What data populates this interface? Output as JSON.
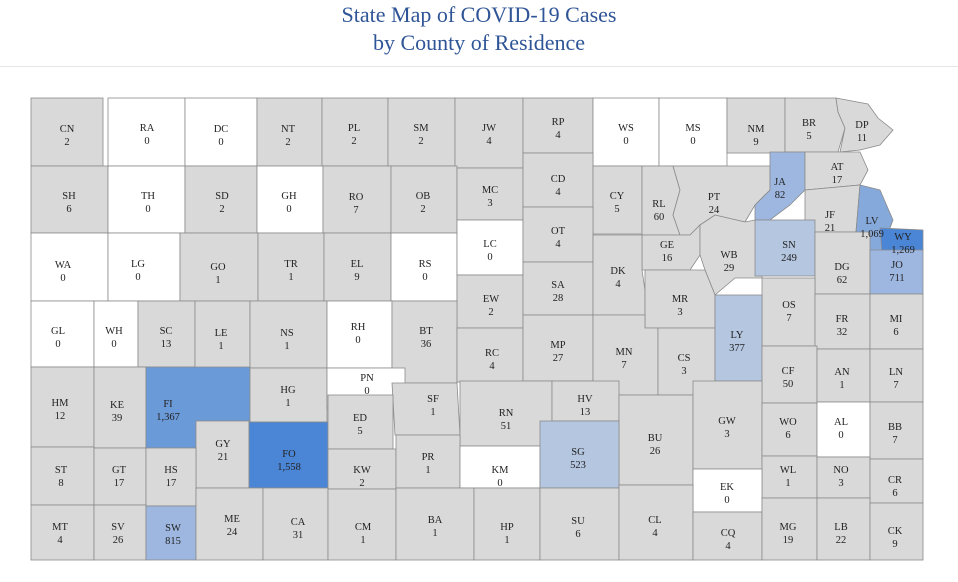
{
  "title": {
    "line1": "State Map of COVID-19 Cases",
    "line2": "by County of Residence"
  },
  "colors": {
    "zero": "#ffffff",
    "low": "#d9d9d9",
    "mid": "#b4c6e0",
    "high": "#86a9dc",
    "higher": "#6b9ad9",
    "highest": "#4b86d6",
    "border": "#8a8a8a"
  },
  "counties": [
    {
      "abbr": "CN",
      "cases": "2"
    },
    {
      "abbr": "RA",
      "cases": "0"
    },
    {
      "abbr": "DC",
      "cases": "0"
    },
    {
      "abbr": "NT",
      "cases": "2"
    },
    {
      "abbr": "PL",
      "cases": "2"
    },
    {
      "abbr": "SM",
      "cases": "2"
    },
    {
      "abbr": "JW",
      "cases": "4"
    },
    {
      "abbr": "RP",
      "cases": "4"
    },
    {
      "abbr": "WS",
      "cases": "0"
    },
    {
      "abbr": "MS",
      "cases": "0"
    },
    {
      "abbr": "NM",
      "cases": "9"
    },
    {
      "abbr": "BR",
      "cases": "5"
    },
    {
      "abbr": "DP",
      "cases": "11"
    },
    {
      "abbr": "SH",
      "cases": "6"
    },
    {
      "abbr": "TH",
      "cases": "0"
    },
    {
      "abbr": "SD",
      "cases": "2"
    },
    {
      "abbr": "GH",
      "cases": "0"
    },
    {
      "abbr": "RO",
      "cases": "7"
    },
    {
      "abbr": "OB",
      "cases": "2"
    },
    {
      "abbr": "MC",
      "cases": "3"
    },
    {
      "abbr": "CD",
      "cases": "4"
    },
    {
      "abbr": "CY",
      "cases": "5"
    },
    {
      "abbr": "RL",
      "cases": "60"
    },
    {
      "abbr": "PT",
      "cases": "24"
    },
    {
      "abbr": "JA",
      "cases": "82"
    },
    {
      "abbr": "AT",
      "cases": "17"
    },
    {
      "abbr": "JF",
      "cases": "21"
    },
    {
      "abbr": "LV",
      "cases": "1,069"
    },
    {
      "abbr": "WY",
      "cases": "1,269"
    },
    {
      "abbr": "WA",
      "cases": "0"
    },
    {
      "abbr": "LG",
      "cases": "0"
    },
    {
      "abbr": "GO",
      "cases": "1"
    },
    {
      "abbr": "TR",
      "cases": "1"
    },
    {
      "abbr": "EL",
      "cases": "9"
    },
    {
      "abbr": "RS",
      "cases": "0"
    },
    {
      "abbr": "LC",
      "cases": "0"
    },
    {
      "abbr": "OT",
      "cases": "4"
    },
    {
      "abbr": "GE",
      "cases": "16"
    },
    {
      "abbr": "WB",
      "cases": "29"
    },
    {
      "abbr": "SN",
      "cases": "249"
    },
    {
      "abbr": "DG",
      "cases": "62"
    },
    {
      "abbr": "JO",
      "cases": "711"
    },
    {
      "abbr": "EW",
      "cases": "2"
    },
    {
      "abbr": "SA",
      "cases": "28"
    },
    {
      "abbr": "DK",
      "cases": "4"
    },
    {
      "abbr": "MR",
      "cases": "3"
    },
    {
      "abbr": "OS",
      "cases": "7"
    },
    {
      "abbr": "FR",
      "cases": "32"
    },
    {
      "abbr": "MI",
      "cases": "6"
    },
    {
      "abbr": "GL",
      "cases": "0"
    },
    {
      "abbr": "WH",
      "cases": "0"
    },
    {
      "abbr": "SC",
      "cases": "13"
    },
    {
      "abbr": "LE",
      "cases": "1"
    },
    {
      "abbr": "NS",
      "cases": "1"
    },
    {
      "abbr": "RH",
      "cases": "0"
    },
    {
      "abbr": "BT",
      "cases": "36"
    },
    {
      "abbr": "RC",
      "cases": "4"
    },
    {
      "abbr": "MP",
      "cases": "27"
    },
    {
      "abbr": "MN",
      "cases": "7"
    },
    {
      "abbr": "CS",
      "cases": "3"
    },
    {
      "abbr": "LY",
      "cases": "377"
    },
    {
      "abbr": "CF",
      "cases": "50"
    },
    {
      "abbr": "AN",
      "cases": "1"
    },
    {
      "abbr": "LN",
      "cases": "7"
    },
    {
      "abbr": "HM",
      "cases": "12"
    },
    {
      "abbr": "KE",
      "cases": "39"
    },
    {
      "abbr": "FI",
      "cases": "1,367"
    },
    {
      "abbr": "HG",
      "cases": "1"
    },
    {
      "abbr": "PN",
      "cases": "0"
    },
    {
      "abbr": "SF",
      "cases": "1"
    },
    {
      "abbr": "RN",
      "cases": "51"
    },
    {
      "abbr": "HV",
      "cases": "13"
    },
    {
      "abbr": "BU",
      "cases": "26"
    },
    {
      "abbr": "GW",
      "cases": "3"
    },
    {
      "abbr": "WO",
      "cases": "6"
    },
    {
      "abbr": "AL",
      "cases": "0"
    },
    {
      "abbr": "BB",
      "cases": "7"
    },
    {
      "abbr": "GY",
      "cases": "21"
    },
    {
      "abbr": "FO",
      "cases": "1,558"
    },
    {
      "abbr": "ED",
      "cases": "5"
    },
    {
      "abbr": "ST",
      "cases": "8"
    },
    {
      "abbr": "GT",
      "cases": "17"
    },
    {
      "abbr": "HS",
      "cases": "17"
    },
    {
      "abbr": "KW",
      "cases": "2"
    },
    {
      "abbr": "PR",
      "cases": "1"
    },
    {
      "abbr": "KM",
      "cases": "0"
    },
    {
      "abbr": "SG",
      "cases": "523"
    },
    {
      "abbr": "WL",
      "cases": "1"
    },
    {
      "abbr": "NO",
      "cases": "3"
    },
    {
      "abbr": "CR",
      "cases": "6"
    },
    {
      "abbr": "EK",
      "cases": "0"
    },
    {
      "abbr": "MT",
      "cases": "4"
    },
    {
      "abbr": "SV",
      "cases": "26"
    },
    {
      "abbr": "SW",
      "cases": "815"
    },
    {
      "abbr": "ME",
      "cases": "24"
    },
    {
      "abbr": "CA",
      "cases": "31"
    },
    {
      "abbr": "CM",
      "cases": "1"
    },
    {
      "abbr": "BA",
      "cases": "1"
    },
    {
      "abbr": "HP",
      "cases": "1"
    },
    {
      "abbr": "SU",
      "cases": "6"
    },
    {
      "abbr": "CL",
      "cases": "4"
    },
    {
      "abbr": "CQ",
      "cases": "4"
    },
    {
      "abbr": "MG",
      "cases": "19"
    },
    {
      "abbr": "LB",
      "cases": "22"
    },
    {
      "abbr": "CK",
      "cases": "9"
    }
  ]
}
